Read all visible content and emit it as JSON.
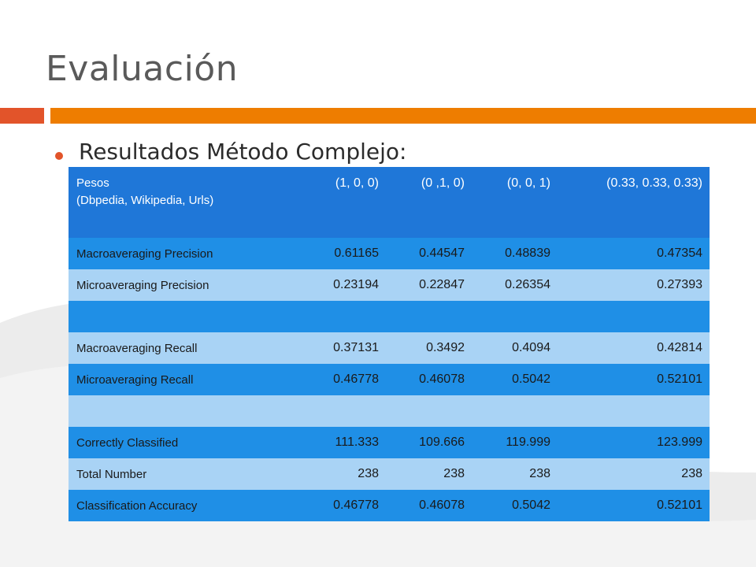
{
  "slide": {
    "title": "Evaluación",
    "bullet": "Resultados Método Complejo:"
  },
  "table": {
    "header": {
      "label_line1": "Pesos",
      "label_line2": "(Dbpedia, Wikipedia, Urls)",
      "cols": [
        "(1, 0, 0)",
        "(0 ,1, 0)",
        "(0, 0, 1)",
        "(0.33, 0.33, 0.33)"
      ]
    },
    "rows": [
      {
        "label": "Macroaveraging Precision",
        "values": [
          "0.61165",
          "0.44547",
          "0.48839",
          "0.47354"
        ]
      },
      {
        "label": "Microaveraging Precision",
        "values": [
          "0.23194",
          "0.22847",
          "0.26354",
          "0.27393"
        ]
      },
      {
        "label": "",
        "values": [
          "",
          "",
          "",
          ""
        ]
      },
      {
        "label": "Macroaveraging Recall",
        "values": [
          "0.37131",
          "0.3492",
          "0.4094",
          "0.42814"
        ]
      },
      {
        "label": "Microaveraging Recall",
        "values": [
          "0.46778",
          "0.46078",
          "0.5042",
          "0.52101"
        ]
      },
      {
        "label": "",
        "values": [
          "",
          "",
          "",
          ""
        ]
      },
      {
        "label": "Correctly Classified",
        "values": [
          "111.333",
          "109.666",
          "119.999",
          "123.999"
        ]
      },
      {
        "label": "Total Number",
        "values": [
          "238",
          "238",
          "238",
          "238"
        ]
      },
      {
        "label": "Classification Accuracy",
        "values": [
          "0.46778",
          "0.46078",
          "0.5042",
          "0.52101"
        ]
      }
    ]
  },
  "colors": {
    "title_text": "#5a5a5a",
    "accent_red": "#e2542a",
    "accent_orange": "#ee7d00",
    "table_header": "#1f77d8",
    "table_dark_row": "#1f8fe6",
    "table_light_row": "#a9d3f5",
    "background_swoosh": "#ececec"
  }
}
